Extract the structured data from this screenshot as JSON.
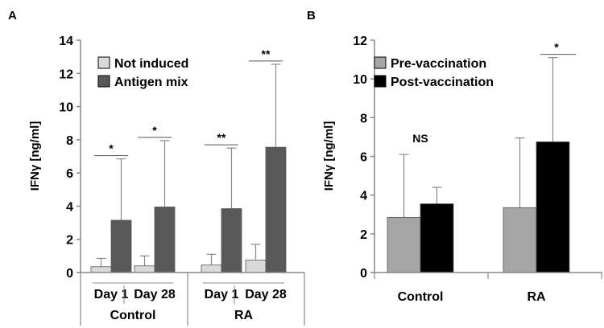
{
  "chart_data": [
    {
      "panel_label": "A",
      "type": "bar",
      "ylabel": "IFNγ [ng/ml]",
      "ylim": [
        0,
        14
      ],
      "yticks": [
        0,
        2,
        4,
        6,
        8,
        10,
        12,
        14
      ],
      "groups": [
        {
          "name": "Control",
          "subgroups": [
            "Day 1",
            "Day 28"
          ]
        },
        {
          "name": "RA",
          "subgroups": [
            "Day 1",
            "Day 28"
          ]
        }
      ],
      "categories": [
        "Control Day 1",
        "Control Day 28",
        "RA Day 1",
        "RA Day 28"
      ],
      "series": [
        {
          "name": "Not induced",
          "color": "#d9d9d9",
          "values": [
            0.35,
            0.4,
            0.45,
            0.75
          ],
          "errors": [
            0.5,
            0.6,
            0.65,
            0.95
          ]
        },
        {
          "name": "Antigen mix",
          "color": "#595959",
          "values": [
            3.15,
            3.95,
            3.85,
            7.55
          ],
          "errors": [
            3.7,
            4.0,
            3.65,
            5.0
          ]
        }
      ],
      "significance": [
        "*",
        "*",
        "**",
        "**"
      ],
      "legend_position": "top-left"
    },
    {
      "panel_label": "B",
      "type": "bar",
      "ylabel": "IFNγ [ng/ml]",
      "ylim": [
        0,
        12
      ],
      "yticks": [
        0,
        2,
        4,
        6,
        8,
        10,
        12
      ],
      "categories": [
        "Control",
        "RA"
      ],
      "series": [
        {
          "name": "Pre-vaccination",
          "color": "#a6a6a6",
          "values": [
            2.85,
            3.35
          ],
          "errors": [
            3.25,
            3.6
          ]
        },
        {
          "name": "Post-vaccination",
          "color": "#000000",
          "values": [
            3.55,
            6.75
          ],
          "errors": [
            0.85,
            4.35
          ]
        }
      ],
      "significance": [
        "NS",
        "*"
      ],
      "legend_position": "top-left"
    }
  ]
}
